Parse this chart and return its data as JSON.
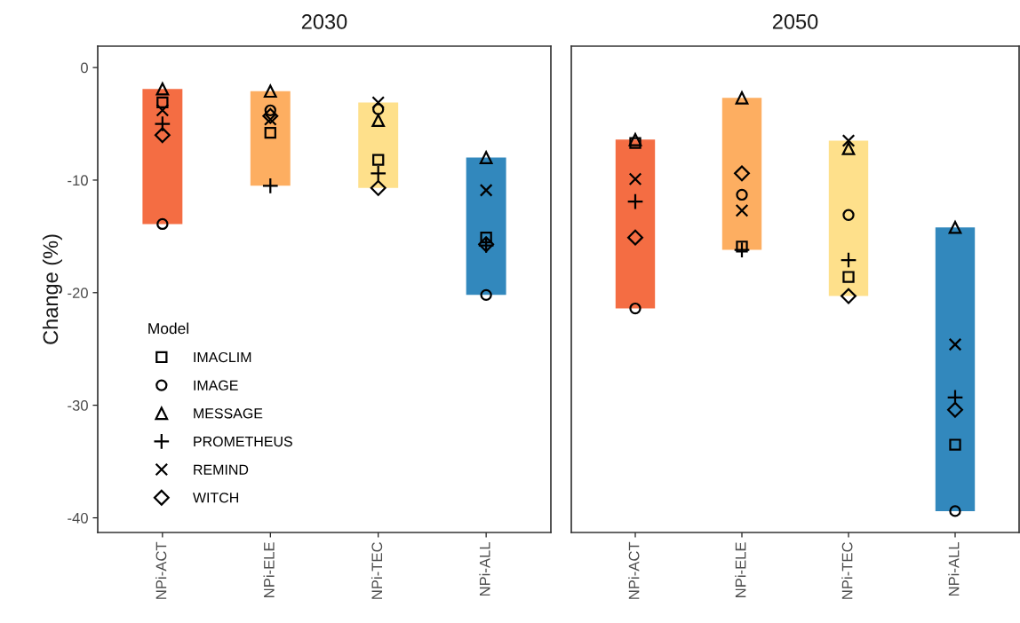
{
  "chart_data": [
    {
      "type": "bar",
      "title": "2030",
      "ylabel": "Change (%)",
      "categories": [
        "NPi-ACT",
        "NPi-ELE",
        "NPi-TEC",
        "NPi-ALL"
      ],
      "ylim": [
        -41.3,
        1.9
      ],
      "yticks": [
        0,
        -10,
        -20,
        -30,
        -40
      ],
      "grid": false,
      "legend": "bottom left",
      "legend_title": "Model",
      "series": [
        {
          "colors": [
            "#f46d43",
            "#fdae61",
            "#fee08b",
            "#3288bd"
          ],
          "base": [
            -13.9,
            -10.5,
            -10.7,
            -20.2
          ],
          "values": [
            12.0,
            8.4,
            7.6,
            12.2
          ]
        },
        {
          "type": "scatter",
          "name": "IMACLIM",
          "marker": "square",
          "color": "#000000",
          "x": [
            "NPi-ACT",
            "NPi-ELE",
            "NPi-TEC",
            "NPi-ALL"
          ],
          "values": [
            -3.1,
            -5.8,
            -8.2,
            -15.1
          ]
        },
        {
          "type": "scatter",
          "name": "IMAGE",
          "marker": "circle",
          "color": "#000000",
          "x": [
            "NPi-ACT",
            "NPi-ELE",
            "NPi-TEC",
            "NPi-ALL"
          ],
          "values": [
            -13.9,
            -3.8,
            -3.7,
            -20.2
          ]
        },
        {
          "type": "scatter",
          "name": "MESSAGE",
          "marker": "triangle",
          "color": "#000000",
          "x": [
            "NPi-ACT",
            "NPi-ELE",
            "NPi-TEC",
            "NPi-ALL"
          ],
          "values": [
            -1.9,
            -2.1,
            -4.7,
            -8.0
          ]
        },
        {
          "type": "scatter",
          "name": "PROMETHEUS",
          "marker": "plus",
          "color": "#000000",
          "x": [
            "NPi-ACT",
            "NPi-ELE",
            "NPi-TEC",
            "NPi-ALL"
          ],
          "values": [
            -5.0,
            -10.5,
            -9.4,
            -15.8
          ]
        },
        {
          "type": "scatter",
          "name": "REMIND",
          "marker": "cross",
          "color": "#000000",
          "x": [
            "NPi-ACT",
            "NPi-ELE",
            "NPi-TEC",
            "NPi-ALL"
          ],
          "values": [
            -3.8,
            -4.6,
            -3.1,
            -10.9
          ]
        },
        {
          "type": "scatter",
          "name": "WITCH",
          "marker": "diamond",
          "color": "#000000",
          "x": [
            "NPi-ACT",
            "NPi-ELE",
            "NPi-TEC",
            "NPi-ALL"
          ],
          "values": [
            -6.0,
            -4.3,
            -10.7,
            -15.7
          ]
        }
      ]
    },
    {
      "type": "bar",
      "title": "2050",
      "categories": [
        "NPi-ACT",
        "NPi-ELE",
        "NPi-TEC",
        "NPi-ALL"
      ],
      "ylim": [
        -41.3,
        1.9
      ],
      "tick_labels": "x",
      "grid": false,
      "series": [
        {
          "colors": [
            "#f46d43",
            "#fdae61",
            "#fee08b",
            "#3288bd"
          ],
          "base": [
            -21.4,
            -16.2,
            -20.3,
            -39.4
          ],
          "values": [
            15.0,
            13.5,
            13.8,
            25.2
          ]
        },
        {
          "type": "scatter",
          "marker": "square",
          "color": "#000000",
          "x": [
            "NPi-ACT",
            "NPi-ELE",
            "NPi-TEC",
            "NPi-ALL"
          ],
          "values": [
            -6.7,
            -15.9,
            -18.6,
            -33.5
          ]
        },
        {
          "type": "scatter",
          "marker": "circle",
          "color": "#000000",
          "x": [
            "NPi-ACT",
            "NPi-ELE",
            "NPi-TEC",
            "NPi-ALL"
          ],
          "values": [
            -21.4,
            -11.3,
            -13.1,
            -39.4
          ]
        },
        {
          "type": "scatter",
          "marker": "triangle",
          "color": "#000000",
          "x": [
            "NPi-ACT",
            "NPi-ELE",
            "NPi-TEC",
            "NPi-ALL"
          ],
          "values": [
            -6.4,
            -2.7,
            -7.2,
            -14.2
          ]
        },
        {
          "type": "scatter",
          "marker": "plus",
          "color": "#000000",
          "x": [
            "NPi-ACT",
            "NPi-ELE",
            "NPi-TEC",
            "NPi-ALL"
          ],
          "values": [
            -11.9,
            -16.2,
            -17.1,
            -29.3
          ]
        },
        {
          "type": "scatter",
          "marker": "cross",
          "color": "#000000",
          "x": [
            "NPi-ACT",
            "NPi-ELE",
            "NPi-TEC",
            "NPi-ALL"
          ],
          "values": [
            -9.9,
            -12.7,
            -6.5,
            -24.6
          ]
        },
        {
          "type": "scatter",
          "marker": "diamond",
          "color": "#000000",
          "x": [
            "NPi-ACT",
            "NPi-ELE",
            "NPi-TEC",
            "NPi-ALL"
          ],
          "values": [
            -15.1,
            -9.4,
            -20.3,
            -30.4
          ]
        }
      ]
    }
  ]
}
